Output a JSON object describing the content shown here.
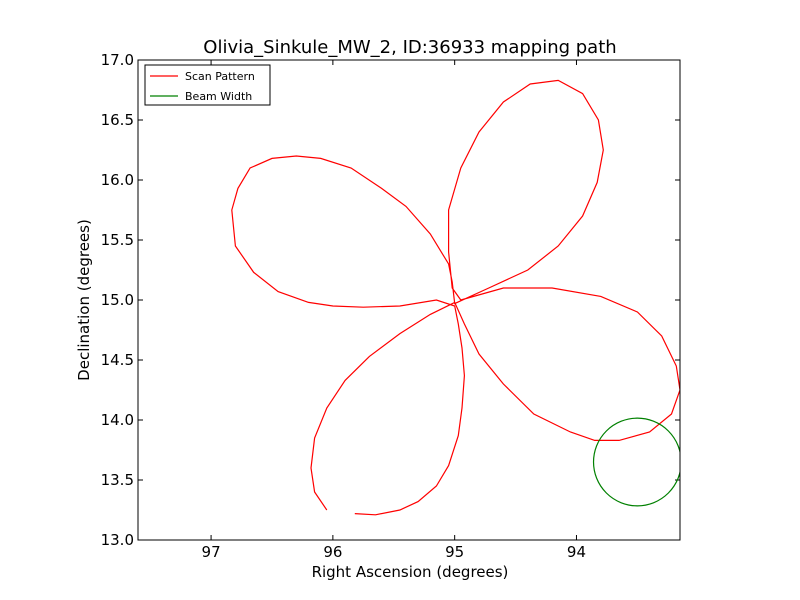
{
  "chart_data": {
    "type": "line",
    "title": "Olivia_Sinkule_MW_2, ID:36933 mapping path",
    "xlabel": "Right Ascension (degrees)",
    "ylabel": "Declination (degrees)",
    "xlim": [
      97.6,
      93.15
    ],
    "ylim": [
      13.0,
      17.0
    ],
    "x_reversed": true,
    "xticks": [
      97,
      96,
      95,
      94
    ],
    "xtick_labels": [
      "97",
      "96",
      "95",
      "94"
    ],
    "yticks": [
      13.0,
      13.5,
      14.0,
      14.5,
      15.0,
      15.5,
      16.0,
      16.5,
      17.0
    ],
    "ytick_labels": [
      "13.0",
      "13.5",
      "14.0",
      "14.5",
      "15.0",
      "15.5",
      "16.0",
      "16.5",
      "17.0"
    ],
    "legend_position": "upper-left",
    "series": [
      {
        "name": "Scan Pattern",
        "color": "#ff0000",
        "points": [
          [
            95.82,
            13.22
          ],
          [
            95.65,
            13.21
          ],
          [
            95.45,
            13.25
          ],
          [
            95.3,
            13.32
          ],
          [
            95.15,
            13.45
          ],
          [
            95.05,
            13.62
          ],
          [
            94.97,
            13.87
          ],
          [
            94.94,
            14.1
          ],
          [
            94.92,
            14.37
          ],
          [
            94.94,
            14.6
          ],
          [
            94.97,
            14.8
          ],
          [
            95.0,
            14.95
          ],
          [
            95.15,
            15.0
          ],
          [
            95.45,
            14.95
          ],
          [
            95.75,
            14.94
          ],
          [
            96.0,
            14.95
          ],
          [
            96.2,
            14.98
          ],
          [
            96.45,
            15.07
          ],
          [
            96.65,
            15.23
          ],
          [
            96.8,
            15.45
          ],
          [
            96.83,
            15.75
          ],
          [
            96.78,
            15.93
          ],
          [
            96.68,
            16.1
          ],
          [
            96.5,
            16.18
          ],
          [
            96.3,
            16.2
          ],
          [
            96.1,
            16.18
          ],
          [
            95.85,
            16.1
          ],
          [
            95.6,
            15.93
          ],
          [
            95.4,
            15.78
          ],
          [
            95.2,
            15.55
          ],
          [
            95.05,
            15.3
          ],
          [
            95.02,
            15.15
          ],
          [
            95.0,
            14.97
          ],
          [
            94.72,
            15.1
          ],
          [
            94.4,
            15.25
          ],
          [
            94.15,
            15.45
          ],
          [
            93.95,
            15.7
          ],
          [
            93.83,
            15.98
          ],
          [
            93.78,
            16.25
          ],
          [
            93.82,
            16.5
          ],
          [
            93.95,
            16.72
          ],
          [
            94.15,
            16.83
          ],
          [
            94.38,
            16.8
          ],
          [
            94.6,
            16.65
          ],
          [
            94.8,
            16.4
          ],
          [
            94.95,
            16.1
          ],
          [
            95.05,
            15.75
          ],
          [
            95.05,
            15.4
          ],
          [
            95.02,
            15.1
          ],
          [
            94.95,
            15.0
          ],
          [
            94.6,
            15.1
          ],
          [
            94.2,
            15.1
          ],
          [
            93.8,
            15.03
          ],
          [
            93.5,
            14.9
          ],
          [
            93.3,
            14.7
          ],
          [
            93.18,
            14.45
          ],
          [
            93.15,
            14.25
          ],
          [
            93.22,
            14.05
          ],
          [
            93.4,
            13.9
          ],
          [
            93.65,
            13.83
          ],
          [
            93.85,
            13.83
          ],
          [
            94.05,
            13.9
          ],
          [
            94.35,
            14.05
          ],
          [
            94.6,
            14.3
          ],
          [
            94.8,
            14.55
          ],
          [
            94.92,
            14.8
          ],
          [
            95.0,
            14.98
          ],
          [
            95.2,
            14.88
          ],
          [
            95.45,
            14.72
          ],
          [
            95.7,
            14.53
          ],
          [
            95.9,
            14.33
          ],
          [
            96.05,
            14.1
          ],
          [
            96.15,
            13.85
          ],
          [
            96.18,
            13.6
          ],
          [
            96.15,
            13.4
          ],
          [
            96.05,
            13.25
          ]
        ]
      },
      {
        "name": "Beam Width",
        "color": "#008000",
        "center": [
          93.5,
          13.65
        ],
        "radius": 0.36
      }
    ]
  }
}
